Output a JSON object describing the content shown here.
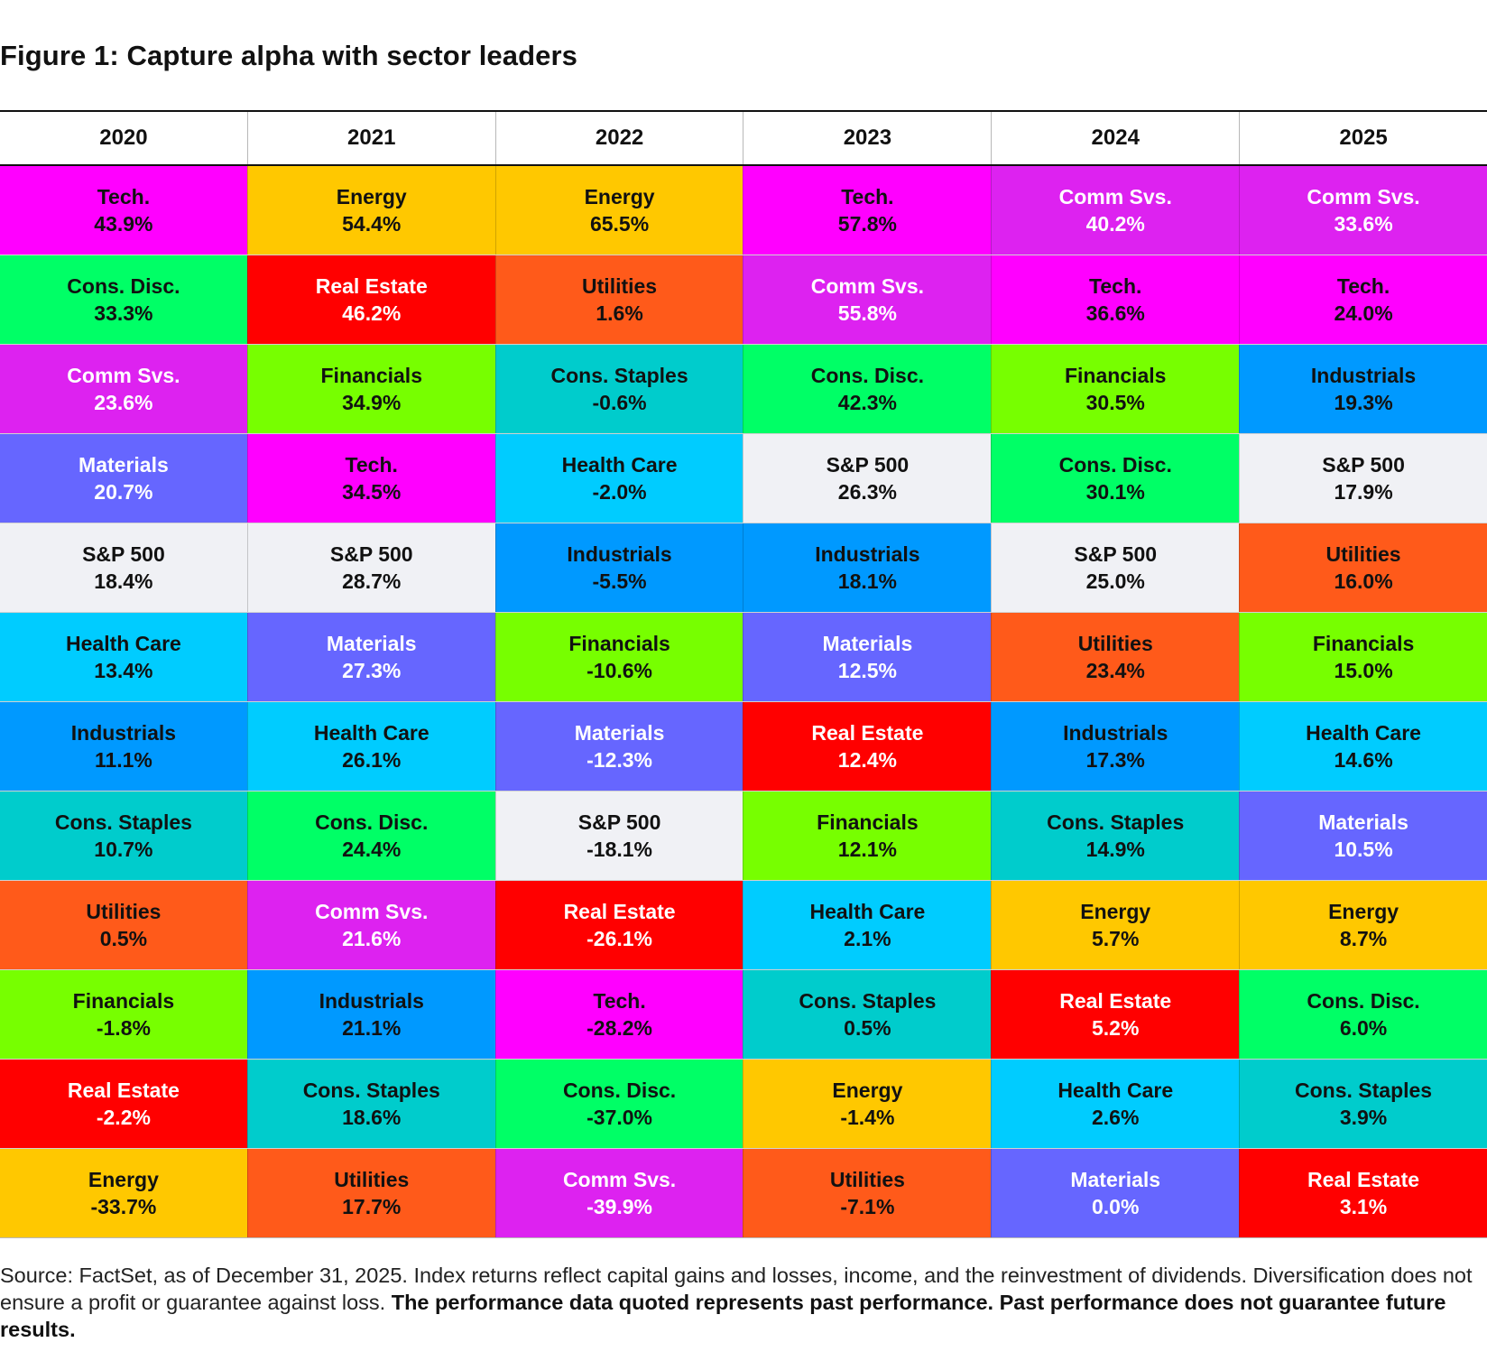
{
  "title": "Figure 1: Capture alpha with sector leaders",
  "colors": {
    "Tech.": "#ff00ff",
    "Energy": "#ffc800",
    "Comm Svs.": "#dd22f0",
    "Cons. Disc.": "#00ff66",
    "Real Estate": "#ff0000",
    "Utilities": "#ff5a1a",
    "Financials": "#77ff00",
    "Cons. Staples": "#00cccc",
    "Industrials": "#0099ff",
    "Materials": "#6666ff",
    "S&P 500": "#f0f1f5",
    "Health Care": "#00ccff"
  },
  "light_text_sectors": [
    "Comm Svs.",
    "Real Estate",
    "Materials"
  ],
  "chart_data": {
    "type": "table",
    "title": "Figure 1: Capture alpha with sector leaders",
    "columns": [
      "2020",
      "2021",
      "2022",
      "2023",
      "2024",
      "2025"
    ],
    "rows_by_year": [
      [
        {
          "sector": "Tech.",
          "value": "43.9%"
        },
        {
          "sector": "Cons. Disc.",
          "value": "33.3%"
        },
        {
          "sector": "Comm Svs.",
          "value": "23.6%"
        },
        {
          "sector": "Materials",
          "value": "20.7%"
        },
        {
          "sector": "S&P 500",
          "value": "18.4%"
        },
        {
          "sector": "Health Care",
          "value": "13.4%"
        },
        {
          "sector": "Industrials",
          "value": "11.1%"
        },
        {
          "sector": "Cons. Staples",
          "value": "10.7%"
        },
        {
          "sector": "Utilities",
          "value": "0.5%"
        },
        {
          "sector": "Financials",
          "value": "-1.8%"
        },
        {
          "sector": "Real Estate",
          "value": "-2.2%"
        },
        {
          "sector": "Energy",
          "value": "-33.7%"
        }
      ],
      [
        {
          "sector": "Energy",
          "value": "54.4%"
        },
        {
          "sector": "Real Estate",
          "value": "46.2%"
        },
        {
          "sector": "Financials",
          "value": "34.9%"
        },
        {
          "sector": "Tech.",
          "value": "34.5%"
        },
        {
          "sector": "S&P 500",
          "value": "28.7%"
        },
        {
          "sector": "Materials",
          "value": "27.3%"
        },
        {
          "sector": "Health Care",
          "value": "26.1%"
        },
        {
          "sector": "Cons. Disc.",
          "value": "24.4%"
        },
        {
          "sector": "Comm Svs.",
          "value": "21.6%"
        },
        {
          "sector": "Industrials",
          "value": "21.1%"
        },
        {
          "sector": "Cons. Staples",
          "value": "18.6%"
        },
        {
          "sector": "Utilities",
          "value": "17.7%"
        }
      ],
      [
        {
          "sector": "Energy",
          "value": "65.5%"
        },
        {
          "sector": "Utilities",
          "value": "1.6%"
        },
        {
          "sector": "Cons. Staples",
          "value": "-0.6%"
        },
        {
          "sector": "Health Care",
          "value": "-2.0%"
        },
        {
          "sector": "Industrials",
          "value": "-5.5%"
        },
        {
          "sector": "Financials",
          "value": "-10.6%"
        },
        {
          "sector": "Materials",
          "value": "-12.3%"
        },
        {
          "sector": "S&P 500",
          "value": "-18.1%"
        },
        {
          "sector": "Real Estate",
          "value": "-26.1%"
        },
        {
          "sector": "Tech.",
          "value": "-28.2%"
        },
        {
          "sector": "Cons. Disc.",
          "value": "-37.0%"
        },
        {
          "sector": "Comm Svs.",
          "value": "-39.9%"
        }
      ],
      [
        {
          "sector": "Tech.",
          "value": "57.8%"
        },
        {
          "sector": "Comm Svs.",
          "value": "55.8%"
        },
        {
          "sector": "Cons. Disc.",
          "value": "42.3%"
        },
        {
          "sector": "S&P 500",
          "value": "26.3%"
        },
        {
          "sector": "Industrials",
          "value": "18.1%"
        },
        {
          "sector": "Materials",
          "value": "12.5%"
        },
        {
          "sector": "Real Estate",
          "value": "12.4%"
        },
        {
          "sector": "Financials",
          "value": "12.1%"
        },
        {
          "sector": "Health Care",
          "value": "2.1%"
        },
        {
          "sector": "Cons. Staples",
          "value": "0.5%"
        },
        {
          "sector": "Energy",
          "value": "-1.4%"
        },
        {
          "sector": "Utilities",
          "value": "-7.1%"
        }
      ],
      [
        {
          "sector": "Comm Svs.",
          "value": "40.2%"
        },
        {
          "sector": "Tech.",
          "value": "36.6%"
        },
        {
          "sector": "Financials",
          "value": "30.5%"
        },
        {
          "sector": "Cons. Disc.",
          "value": "30.1%"
        },
        {
          "sector": "S&P 500",
          "value": "25.0%"
        },
        {
          "sector": "Utilities",
          "value": "23.4%"
        },
        {
          "sector": "Industrials",
          "value": "17.3%"
        },
        {
          "sector": "Cons. Staples",
          "value": "14.9%"
        },
        {
          "sector": "Energy",
          "value": "5.7%"
        },
        {
          "sector": "Real Estate",
          "value": "5.2%"
        },
        {
          "sector": "Health Care",
          "value": "2.6%"
        },
        {
          "sector": "Materials",
          "value": "0.0%"
        }
      ],
      [
        {
          "sector": "Comm Svs.",
          "value": "33.6%"
        },
        {
          "sector": "Tech.",
          "value": "24.0%"
        },
        {
          "sector": "Industrials",
          "value": "19.3%"
        },
        {
          "sector": "S&P 500",
          "value": "17.9%"
        },
        {
          "sector": "Utilities",
          "value": "16.0%"
        },
        {
          "sector": "Financials",
          "value": "15.0%"
        },
        {
          "sector": "Health Care",
          "value": "14.6%"
        },
        {
          "sector": "Materials",
          "value": "10.5%"
        },
        {
          "sector": "Energy",
          "value": "8.7%"
        },
        {
          "sector": "Cons. Disc.",
          "value": "6.0%"
        },
        {
          "sector": "Cons. Staples",
          "value": "3.9%"
        },
        {
          "sector": "Real Estate",
          "value": "3.1%"
        }
      ]
    ]
  },
  "footnote": {
    "plain": "Source: FactSet, as of December 31, 2025. Index returns reflect capital gains and losses, income, and the reinvestment of dividends. Diversification does not ensure a profit or guarantee against loss. ",
    "bold": "The performance data quoted represents past performance. Past performance does not guarantee future results."
  }
}
